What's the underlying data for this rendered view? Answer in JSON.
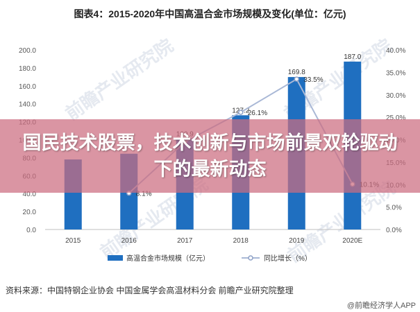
{
  "title": "图表4：2015-2020年中国高温合金市场规模及变化(单位：亿元)",
  "banner": "国民技术股票，技术创新与市场前景双轮驱动下的最新动态",
  "source": "资料来源：中国特钢企业协会 中国金属学会高温材料分会 前瞻产业研究院整理",
  "credit": "@前瞻经济学人APP",
  "watermark": "前瞻产业研究院",
  "chart_data": {
    "type": "bar",
    "categories": [
      "2015",
      "2016",
      "2017",
      "2018",
      "2019",
      "2020E"
    ],
    "series": [
      {
        "name": "高温合金市场规模（亿元）",
        "type": "bar",
        "axis": "left",
        "color": "#1f6fc0",
        "values": [
          78.0,
          84.4,
          100.9,
          127.2,
          169.8,
          187.0
        ],
        "labels": [
          "",
          "",
          "100.9",
          "127.2",
          "169.8",
          "187.0"
        ]
      },
      {
        "name": "同比增长（%）",
        "type": "line",
        "axis": "right",
        "color": "#a9b8d6",
        "values": [
          null,
          8.1,
          19.5,
          26.1,
          33.5,
          10.1
        ],
        "labels": [
          "",
          "8.1%",
          "",
          "26.1%",
          "33.5%",
          "10.1%"
        ]
      }
    ],
    "y_left": {
      "ylim": [
        0,
        200
      ],
      "ticks": [
        "0.0",
        "20.0",
        "40.0",
        "60.0",
        "80.0",
        "100.0",
        "120.0",
        "140.0",
        "160.0",
        "180.0",
        "200.0"
      ]
    },
    "y_right": {
      "ylim": [
        0,
        40
      ],
      "ticks": [
        "0.0%",
        "5.0%",
        "10.0%",
        "15.0%",
        "20.0%",
        "25.0%",
        "30.0%",
        "35.0%",
        "40.0%"
      ]
    },
    "grid": false,
    "legend": "bottom"
  }
}
